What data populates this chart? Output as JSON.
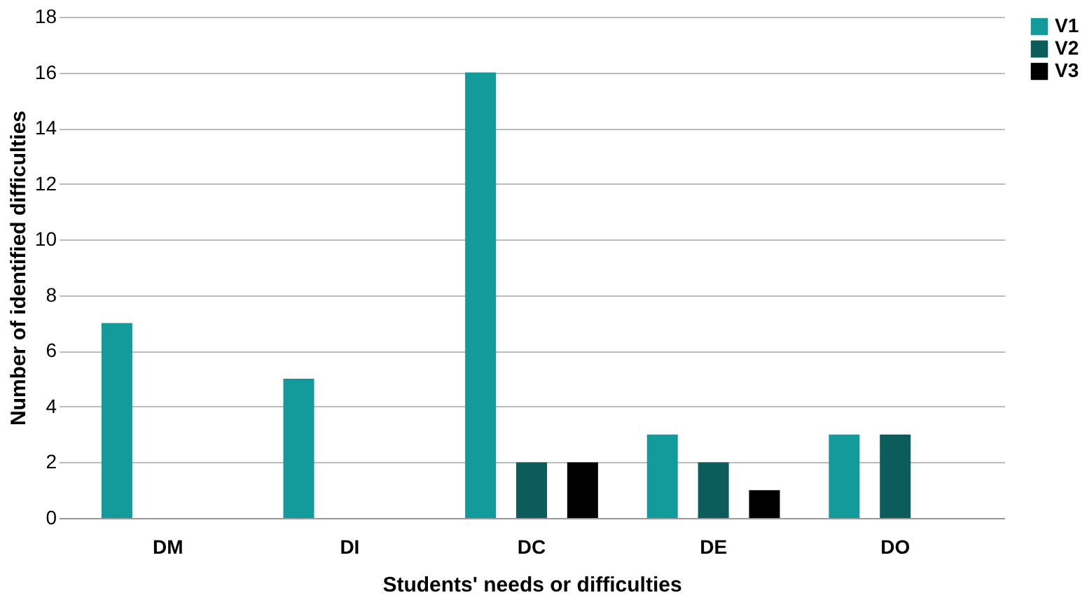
{
  "chart_data": {
    "type": "bar",
    "xlabel": "Students' needs or difficulties",
    "ylabel": "Number of identified difficulties",
    "categories": [
      "DM",
      "DI",
      "DC",
      "DE",
      "DO"
    ],
    "series": [
      {
        "name": "V1",
        "color": "#139a9a",
        "values": [
          7,
          5,
          16,
          3,
          3
        ]
      },
      {
        "name": "V2",
        "color": "#0d5c5c",
        "values": [
          0,
          0,
          2,
          2,
          3
        ]
      },
      {
        "name": "V3",
        "color": "#000000",
        "values": [
          0,
          0,
          2,
          1,
          0
        ]
      }
    ],
    "ylim": [
      0,
      18
    ],
    "yticks": [
      0,
      2,
      4,
      6,
      8,
      10,
      12,
      14,
      16,
      18
    ],
    "grid": "y",
    "legend": "right"
  }
}
